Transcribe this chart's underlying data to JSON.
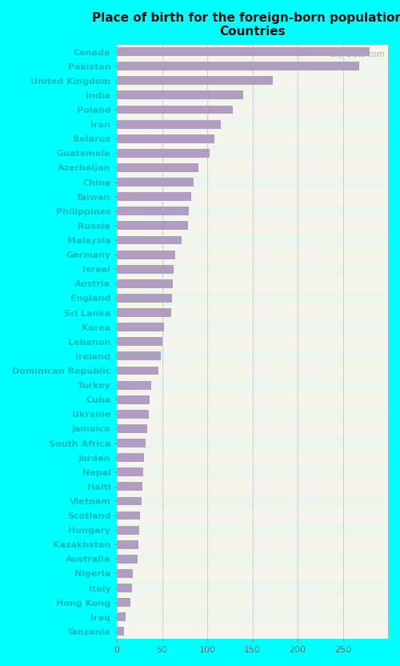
{
  "title": "Place of birth for the foreign-born population -\nCountries",
  "fig_bg": "#00FFFF",
  "plot_bg": "#f0f5ec",
  "bar_color": "#b09ec0",
  "countries": [
    "Canada",
    "Pakistan",
    "United Kingdom",
    "India",
    "Poland",
    "Iran",
    "Belarus",
    "Guatemala",
    "Azerbaijan",
    "China",
    "Taiwan",
    "Philippines",
    "Russia",
    "Malaysia",
    "Germany",
    "Israel",
    "Austria",
    "England",
    "Sri Lanka",
    "Korea",
    "Lebanon",
    "Ireland",
    "Dominican Republic",
    "Turkey",
    "Cuba",
    "Ukraine",
    "Jamaica",
    "South Africa",
    "Jordan",
    "Nepal",
    "Haiti",
    "Vietnam",
    "Scotland",
    "Hungary",
    "Kazakhstan",
    "Australia",
    "Nigeria",
    "Italy",
    "Hong Kong",
    "Iraq",
    "Tanzania"
  ],
  "values": [
    280,
    268,
    173,
    140,
    128,
    115,
    108,
    103,
    90,
    85,
    82,
    80,
    79,
    72,
    65,
    63,
    62,
    61,
    60,
    52,
    50,
    49,
    46,
    38,
    36,
    35,
    34,
    32,
    30,
    29,
    28,
    27,
    26,
    25,
    24,
    23,
    18,
    17,
    15,
    10,
    8
  ],
  "xlim": [
    0,
    300
  ],
  "xticks": [
    0,
    50,
    100,
    150,
    200,
    250
  ],
  "label_color": "#00BBBB",
  "title_color": "#111111",
  "watermark": "City-Data.com",
  "tick_color": "#666666",
  "grid_color": "#cccccc",
  "title_fontsize": 11,
  "label_fontsize": 8,
  "tick_fontsize": 8
}
